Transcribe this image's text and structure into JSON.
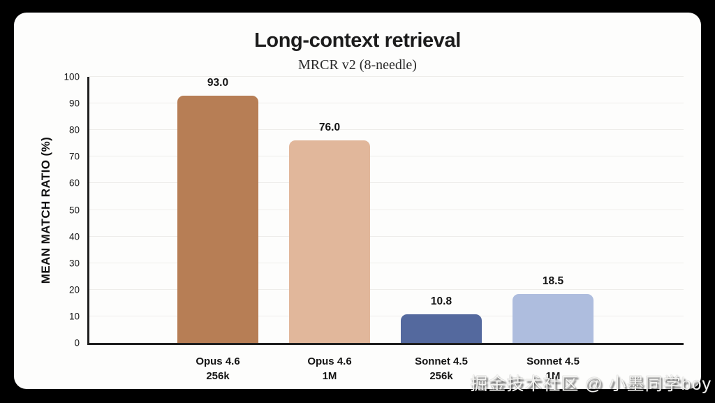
{
  "chart_data": {
    "type": "bar",
    "title": "Long-context retrieval",
    "subtitle": "MRCR v2 (8-needle)",
    "ylabel": "MEAN MATCH RATIO (%)",
    "xlabel": "",
    "ylim": [
      0,
      100
    ],
    "yticks": [
      0,
      10,
      20,
      30,
      40,
      50,
      60,
      70,
      80,
      90,
      100
    ],
    "grid": "horizontal",
    "legend": "none",
    "categories": [
      "Opus 4.6 256k",
      "Opus 4.6 1M",
      "Sonnet 4.5 256k",
      "Sonnet 4.5 1M"
    ],
    "values": [
      93.0,
      76.0,
      10.8,
      18.5
    ],
    "bars": [
      {
        "label_line1": "Opus 4.6",
        "label_line2": "256k",
        "value": 93.0,
        "value_label": "93.0",
        "color": "#b77e55"
      },
      {
        "label_line1": "Opus 4.6",
        "label_line2": "1M",
        "value": 76.0,
        "value_label": "76.0",
        "color": "#e1b79b"
      },
      {
        "label_line1": "Sonnet 4.5",
        "label_line2": "256k",
        "value": 10.8,
        "value_label": "10.8",
        "color": "#54699e"
      },
      {
        "label_line1": "Sonnet 4.5",
        "label_line2": "1M",
        "value": 18.5,
        "value_label": "18.5",
        "color": "#aebdde"
      }
    ]
  },
  "colors": {
    "page_background": "#000000",
    "card_background": "#fdfdfc",
    "axis": "#1f1f1f",
    "grid": "#eeedea",
    "text": "#1c1c1c"
  },
  "watermark": {
    "text": "掘金技术社区 @ 小墨同学boy"
  }
}
